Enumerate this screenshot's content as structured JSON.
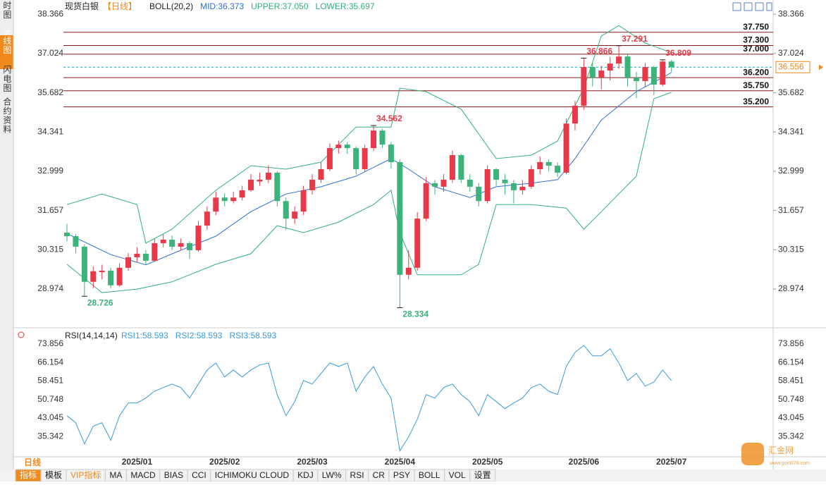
{
  "chart_data": {
    "type": "candlestick",
    "title": "现货白银",
    "period": "【日线】",
    "indicator": "BOLL(20,2)",
    "mid_label": "MID:36.373",
    "upper_label": "UPPER:37.050",
    "lower_label": "LOWER:35.697",
    "side_tabs": [
      "分时图",
      "K线图",
      "闪电图",
      "合约资料"
    ],
    "period_tab": "日线",
    "bottom_tabs": [
      "指标",
      "模板",
      "VIP指标",
      "MA",
      "MACD",
      "BIAS",
      "CCI",
      "ICHIMOKU CLOUD",
      "KDJ",
      "LW%",
      "RSI",
      "CR",
      "PSY",
      "BOLL",
      "VOL",
      "设置"
    ],
    "watermark": "汇金网",
    "watermark_url": "www.gold678.com",
    "ylim": [
      27.72,
      38.66
    ],
    "yticks": [
      38.366,
      37.024,
      35.682,
      34.341,
      32.999,
      31.657,
      30.315,
      28.974
    ],
    "xlim": [
      -0.5,
      73.5
    ],
    "xticks": [
      {
        "value": 8,
        "label": "2025/01"
      },
      {
        "value": 18,
        "label": "2025/02"
      },
      {
        "value": 28,
        "label": "2025/03"
      },
      {
        "value": 38,
        "label": "2025/04"
      },
      {
        "value": 48,
        "label": "2025/05"
      },
      {
        "value": 59,
        "label": "2025/06"
      },
      {
        "value": 69,
        "label": "2025/07"
      }
    ],
    "up_color": "#e8394a",
    "down_color": "#3bb37a",
    "candles": [
      [
        30.9,
        31.2,
        30.6,
        30.78
      ],
      [
        30.78,
        30.85,
        30.2,
        30.42
      ],
      [
        30.42,
        30.5,
        28.726,
        29.22
      ],
      [
        29.22,
        29.75,
        29.0,
        29.58
      ],
      [
        29.55,
        29.8,
        29.3,
        29.6
      ],
      [
        29.6,
        29.7,
        29.0,
        29.1
      ],
      [
        29.1,
        29.85,
        29.05,
        29.7
      ],
      [
        29.7,
        30.2,
        29.6,
        30.06
      ],
      [
        30.06,
        30.4,
        29.9,
        30.18
      ],
      [
        30.18,
        30.3,
        29.8,
        29.94
      ],
      [
        29.94,
        30.7,
        29.9,
        30.54
      ],
      [
        30.54,
        30.85,
        30.4,
        30.66
      ],
      [
        30.66,
        30.8,
        30.3,
        30.42
      ],
      [
        30.42,
        30.7,
        30.3,
        30.54
      ],
      [
        30.54,
        30.6,
        30.0,
        30.3
      ],
      [
        30.3,
        31.3,
        30.25,
        31.14
      ],
      [
        31.14,
        31.8,
        31.0,
        31.62
      ],
      [
        31.62,
        32.3,
        31.5,
        32.1
      ],
      [
        32.1,
        32.25,
        31.8,
        31.98
      ],
      [
        31.98,
        32.3,
        31.9,
        32.1
      ],
      [
        32.1,
        32.5,
        32.0,
        32.35
      ],
      [
        32.35,
        32.9,
        32.3,
        32.71
      ],
      [
        32.65,
        32.95,
        32.5,
        32.71
      ],
      [
        32.71,
        33.2,
        32.6,
        32.95
      ],
      [
        32.95,
        33.0,
        31.8,
        31.98
      ],
      [
        31.98,
        32.1,
        31.0,
        31.38
      ],
      [
        31.38,
        31.8,
        31.2,
        31.62
      ],
      [
        31.62,
        32.5,
        31.5,
        32.35
      ],
      [
        32.35,
        32.9,
        32.2,
        32.71
      ],
      [
        32.71,
        33.3,
        32.6,
        33.07
      ],
      [
        33.07,
        33.95,
        33.0,
        33.79
      ],
      [
        33.79,
        34.05,
        33.6,
        33.91
      ],
      [
        33.91,
        34.0,
        33.6,
        33.79
      ],
      [
        33.79,
        33.85,
        32.9,
        33.07
      ],
      [
        33.07,
        33.9,
        33.0,
        33.79
      ],
      [
        33.79,
        34.562,
        33.7,
        34.39
      ],
      [
        34.39,
        34.45,
        33.8,
        33.91
      ],
      [
        33.91,
        34.0,
        33.1,
        33.31
      ],
      [
        33.31,
        33.4,
        28.334,
        29.46
      ],
      [
        29.46,
        30.3,
        29.3,
        29.7
      ],
      [
        29.7,
        31.6,
        29.6,
        31.38
      ],
      [
        31.38,
        32.8,
        31.3,
        32.59
      ],
      [
        32.59,
        32.7,
        32.2,
        32.47
      ],
      [
        32.47,
        32.9,
        32.3,
        32.71
      ],
      [
        32.71,
        33.7,
        32.6,
        33.55
      ],
      [
        33.55,
        33.6,
        32.6,
        32.71
      ],
      [
        32.71,
        32.9,
        32.3,
        32.47
      ],
      [
        32.47,
        32.6,
        31.8,
        31.98
      ],
      [
        31.98,
        33.2,
        31.9,
        33.07
      ],
      [
        33.07,
        33.1,
        32.5,
        32.71
      ],
      [
        32.71,
        32.9,
        32.2,
        32.59
      ],
      [
        32.59,
        32.7,
        31.9,
        32.35
      ],
      [
        32.35,
        32.7,
        32.2,
        32.47
      ],
      [
        32.47,
        33.2,
        32.4,
        33.07
      ],
      [
        33.07,
        33.5,
        32.9,
        33.31
      ],
      [
        33.31,
        33.4,
        33.0,
        33.19
      ],
      [
        33.19,
        33.3,
        32.8,
        32.95
      ],
      [
        32.95,
        34.8,
        32.9,
        34.63
      ],
      [
        34.63,
        35.4,
        34.4,
        35.24
      ],
      [
        35.24,
        36.866,
        35.1,
        36.56
      ],
      [
        36.56,
        36.7,
        35.9,
        36.2
      ],
      [
        36.2,
        36.6,
        35.8,
        36.44
      ],
      [
        36.44,
        36.9,
        36.1,
        36.68
      ],
      [
        36.68,
        37.291,
        36.5,
        36.92
      ],
      [
        36.92,
        37.0,
        35.9,
        36.2
      ],
      [
        36.2,
        36.4,
        35.5,
        36.08
      ],
      [
        36.08,
        36.7,
        35.9,
        36.56
      ],
      [
        36.56,
        36.6,
        35.6,
        35.96
      ],
      [
        35.96,
        36.809,
        35.9,
        36.75
      ],
      [
        36.75,
        36.8,
        36.4,
        36.556
      ]
    ],
    "extremes": [
      {
        "index": 2,
        "value": 28.726,
        "side": "low"
      },
      {
        "index": 38,
        "value": 28.334,
        "side": "low"
      },
      {
        "index": 35,
        "value": 34.562,
        "side": "high"
      },
      {
        "index": 59,
        "value": 36.866,
        "side": "high"
      },
      {
        "index": 63,
        "value": 37.291,
        "side": "high"
      },
      {
        "index": 68,
        "value": 36.809,
        "side": "high"
      }
    ],
    "levels": [
      {
        "value": 37.75,
        "label": "37.750"
      },
      {
        "value": 37.3,
        "label": "37.300"
      },
      {
        "value": 37.0,
        "label": "37.000"
      },
      {
        "value": 36.2,
        "label": "36.200"
      },
      {
        "value": 35.75,
        "label": "35.750"
      },
      {
        "value": 35.2,
        "label": "35.200"
      }
    ],
    "level_color": "#8b1a1a",
    "last_price": 36.556,
    "bands": [
      {
        "name": "UPPER",
        "color": "#33b07a",
        "x": [
          0,
          4,
          8,
          9,
          12,
          17,
          21,
          25,
          29,
          33,
          37,
          38,
          41,
          45,
          49,
          53,
          56,
          59,
          61,
          63,
          66,
          69
        ],
        "values": [
          31.86,
          32.22,
          31.86,
          30.54,
          31.02,
          32.35,
          33.19,
          33.07,
          33.31,
          34.51,
          34.51,
          35.84,
          35.72,
          35.12,
          33.43,
          33.55,
          34.03,
          35.84,
          37.62,
          37.98,
          37.38,
          37.05
        ]
      },
      {
        "name": "MID",
        "color": "#2f6fd4",
        "x": [
          0,
          5,
          9,
          13,
          17,
          21,
          25,
          29,
          33,
          37,
          39,
          42,
          46,
          49,
          53,
          56,
          58,
          61,
          65,
          69
        ],
        "values": [
          30.87,
          30.15,
          29.8,
          30.3,
          30.78,
          31.62,
          32.22,
          32.47,
          32.83,
          33.43,
          33.07,
          32.47,
          32.1,
          32.47,
          32.59,
          32.71,
          33.43,
          34.75,
          35.72,
          36.373
        ]
      },
      {
        "name": "LOWER",
        "color": "#33b07a",
        "x": [
          0,
          4,
          8,
          12,
          17,
          21,
          24,
          27,
          31,
          35,
          37,
          38,
          40,
          45,
          47,
          49,
          53,
          57,
          59,
          61,
          65,
          67,
          69
        ],
        "values": [
          29.82,
          28.85,
          28.97,
          29.22,
          29.82,
          30.18,
          31.14,
          30.9,
          31.26,
          31.86,
          32.35,
          30.9,
          29.46,
          29.46,
          29.82,
          31.86,
          31.86,
          31.74,
          31.02,
          31.62,
          32.83,
          35.48,
          35.697
        ]
      }
    ],
    "rsi": {
      "title": "RSI(14,14,14)",
      "labels": [
        "RSI1:58.593",
        "RSI2:58.593",
        "RSI3:58.593"
      ],
      "color": "#3a9bd9",
      "ylim": [
        26.85,
        79.71
      ],
      "yticks": [
        73.856,
        66.154,
        58.451,
        50.748,
        43.045,
        35.342
      ],
      "values": [
        43.98,
        41.05,
        32.26,
        39.59,
        41.05,
        33.73,
        43.98,
        49.3,
        49.3,
        51.3,
        54.2,
        55.7,
        57.16,
        55.7,
        51.3,
        57.16,
        63.02,
        65.95,
        60.09,
        63.02,
        60.09,
        63.02,
        65.1,
        65.95,
        52.77,
        43.98,
        49.84,
        58.62,
        57.16,
        61.55,
        65.95,
        64.48,
        65.95,
        54.2,
        60.09,
        64.48,
        57.16,
        51.3,
        29.33,
        35.19,
        42.52,
        52.77,
        51.3,
        55.7,
        57.16,
        52.77,
        49.84,
        43.98,
        52.77,
        49.84,
        46.9,
        49.3,
        51.3,
        55.7,
        57.16,
        54.2,
        52.77,
        64.48,
        70.34,
        73.27,
        68.9,
        68.9,
        71.8,
        65.95,
        58.62,
        61.55,
        56.28,
        58.0,
        63.02,
        58.593
      ]
    }
  }
}
